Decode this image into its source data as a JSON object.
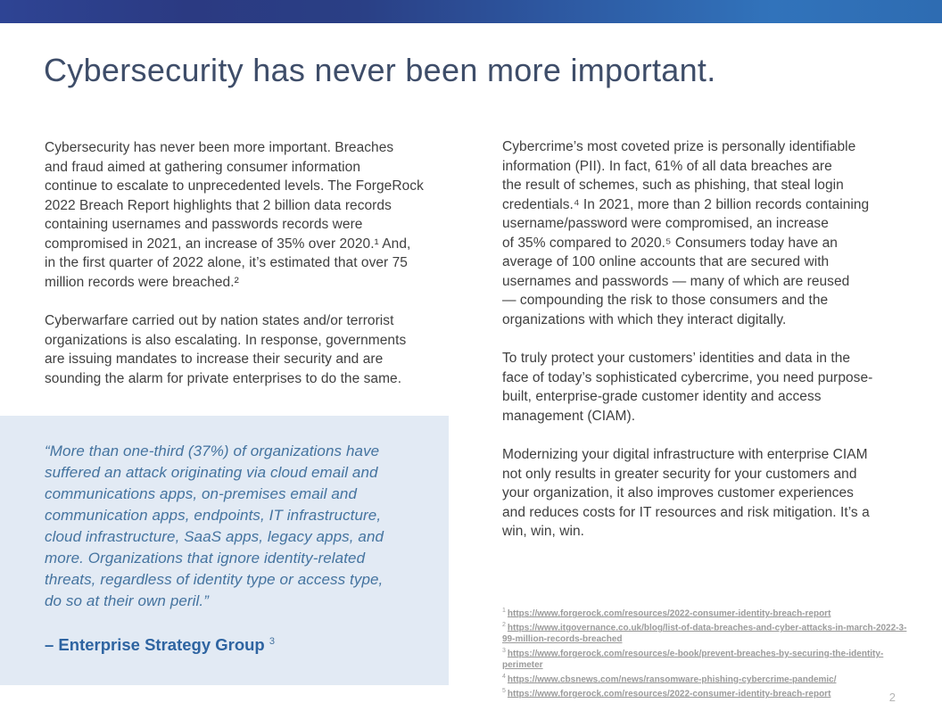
{
  "page": {
    "number": "2"
  },
  "header": {
    "title": "Cybersecurity has never been more important."
  },
  "columns": {
    "left": {
      "para1": "Cybersecurity has never been more important. Breaches\nand fraud aimed at gathering consumer information\ncontinue to escalate to unprecedented levels. The ForgeRock\n2022 Breach Report highlights that 2 billion data records\ncontaining usernames and passwords records were\ncompromised in 2021, an increase of 35% over 2020.¹ And,\nin the first quarter of 2022 alone, it’s estimated that over 75\nmillion records were breached.²",
      "para2": "Cyberwarfare carried out by nation states and/or terrorist\norganizations is also escalating. In response, governments\nare issuing mandates to increase their security and are\nsounding the alarm for private enterprises to do the same."
    },
    "right": {
      "para1": "Cybercrime’s most coveted prize is personally identifiable\ninformation (PII). In fact, 61% of all data breaches are\nthe result of schemes, such as phishing, that steal login\ncredentials.⁴ In 2021, more than 2 billion records containing\nusername/password were compromised, an increase\nof 35% compared to 2020.⁵ Consumers today have an\naverage of 100 online accounts that are secured with\nusernames and passwords — many of which are reused\n— compounding the risk to those consumers and the\norganizations with which they interact digitally.",
      "para2": "To truly protect your customers’ identities and data in the\nface of today’s sophisticated cybercrime, you need purpose-\nbuilt, enterprise-grade customer identity and access\nmanagement (CIAM).",
      "para3": "Modernizing your digital infrastructure with enterprise CIAM\nnot only results in greater security for your customers and\nyour organization, it also improves customer experiences\nand reduces costs for IT resources and risk mitigation. It’s a\nwin, win, win."
    }
  },
  "quote": {
    "text": "“More than one-third (37%) of organizations have\nsuffered an attack originating via cloud email and\ncommunications apps, on-premises email and\ncommunication apps, endpoints, IT infrastructure,\ncloud infrastructure, SaaS apps, legacy apps, and\nmore. Organizations that ignore identity-related\nthreats, regardless of identity type or access type,\ndo so at their own peril.”",
    "attribution": "– Enterprise Strategy Group",
    "attribution_marker": "3"
  },
  "footnotes": [
    {
      "marker": "1",
      "url": "https://www.forgerock.com/resources/2022-consumer-identity-breach-report"
    },
    {
      "marker": "2",
      "url": "https://www.itgovernance.co.uk/blog/list-of-data-breaches-and-cyber-attacks-in-march-2022-3-99-million-records-breached"
    },
    {
      "marker": "3",
      "url": "https://www.forgerock.com/resources/e-book/prevent-breaches-by-securing-the-identity-perimeter"
    },
    {
      "marker": "4",
      "url": "https://www.cbsnews.com/news/ransomware-phishing-cybercrime-pandemic/"
    },
    {
      "marker": "5",
      "url": "https://www.forgerock.com/resources/2022-consumer-identity-breach-report"
    }
  ],
  "colors": {
    "accent_bar_left": "#2b3a82",
    "accent_bar_right": "#3173bb",
    "title": "#3e4d69",
    "body_text": "#404040",
    "quote_background": "#e2eaf4",
    "quote_text": "#44739f",
    "attribution": "#2e64a1",
    "footnote_link": "#9b9b9b",
    "page_number": "#b5b5b5"
  }
}
